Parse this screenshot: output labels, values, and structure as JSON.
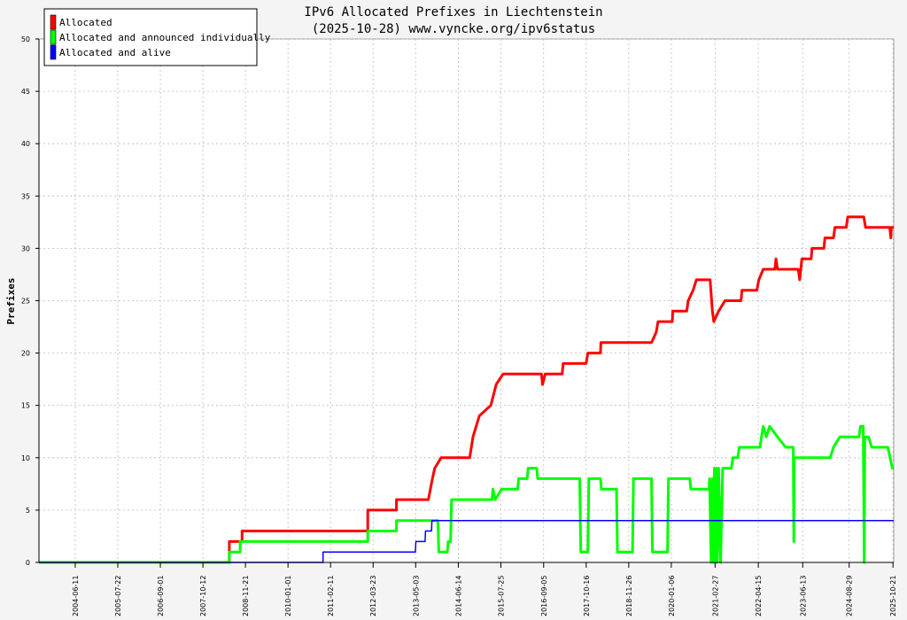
{
  "chart_data": {
    "type": "line",
    "title": "IPv6 Allocated Prefixes in Liechtenstein",
    "subtitle": "(2025-10-28) www.vyncke.org/ipv6status",
    "ylabel": "Prefixes",
    "xlabel": "",
    "ylim": [
      0,
      50
    ],
    "yticks": [
      0,
      5,
      10,
      15,
      20,
      25,
      30,
      35,
      40,
      45,
      50
    ],
    "xlim": [
      "2003-07-01",
      "2025-10-28"
    ],
    "xticks": [
      "2004-06-11",
      "2005-07-22",
      "2006-09-01",
      "2007-10-12",
      "2008-11-21",
      "2010-01-01",
      "2011-02-11",
      "2012-03-23",
      "2013-05-03",
      "2014-06-14",
      "2015-07-25",
      "2016-09-05",
      "2017-10-16",
      "2018-11-26",
      "2020-01-06",
      "2021-02-27",
      "2022-04-15",
      "2023-06-13",
      "2024-08-29",
      "2025-10-21"
    ],
    "grid": true,
    "legend_position": "top-left",
    "series": [
      {
        "name": "Allocated",
        "color": "#ff0000",
        "points": [
          [
            "2003-07-01",
            0
          ],
          [
            "2008-06-20",
            0
          ],
          [
            "2008-06-20",
            2
          ],
          [
            "2008-10-20",
            2
          ],
          [
            "2008-10-20",
            3
          ],
          [
            "2012-02-01",
            3
          ],
          [
            "2012-02-01",
            5
          ],
          [
            "2012-11-01",
            5
          ],
          [
            "2012-11-01",
            6
          ],
          [
            "2013-09-01",
            6
          ],
          [
            "2013-09-20",
            7
          ],
          [
            "2013-10-10",
            8
          ],
          [
            "2013-11-01",
            9
          ],
          [
            "2014-01-01",
            10
          ],
          [
            "2014-10-01",
            10
          ],
          [
            "2014-11-01",
            12
          ],
          [
            "2015-01-01",
            14
          ],
          [
            "2015-04-20",
            15
          ],
          [
            "2015-06-10",
            17
          ],
          [
            "2015-08-15",
            18
          ],
          [
            "2016-08-15",
            18
          ],
          [
            "2016-08-25",
            17
          ],
          [
            "2016-09-20",
            18
          ],
          [
            "2017-03-01",
            18
          ],
          [
            "2017-03-10",
            19
          ],
          [
            "2017-10-15",
            19
          ],
          [
            "2017-11-01",
            20
          ],
          [
            "2018-03-01",
            20
          ],
          [
            "2018-03-05",
            21
          ],
          [
            "2019-07-01",
            21
          ],
          [
            "2019-08-15",
            22
          ],
          [
            "2019-09-01",
            23
          ],
          [
            "2020-01-15",
            23
          ],
          [
            "2020-01-20",
            24
          ],
          [
            "2020-06-01",
            24
          ],
          [
            "2020-06-15",
            25
          ],
          [
            "2020-08-01",
            26
          ],
          [
            "2020-09-01",
            27
          ],
          [
            "2021-01-10",
            27
          ],
          [
            "2021-02-01",
            24
          ],
          [
            "2021-02-15",
            23
          ],
          [
            "2021-04-01",
            24
          ],
          [
            "2021-06-01",
            25
          ],
          [
            "2021-11-01",
            25
          ],
          [
            "2021-11-10",
            26
          ],
          [
            "2022-04-01",
            26
          ],
          [
            "2022-04-20",
            27
          ],
          [
            "2022-06-01",
            28
          ],
          [
            "2022-09-20",
            28
          ],
          [
            "2022-10-01",
            29
          ],
          [
            "2022-10-15",
            28
          ],
          [
            "2023-05-01",
            28
          ],
          [
            "2023-05-15",
            27
          ],
          [
            "2023-06-05",
            29
          ],
          [
            "2023-09-01",
            29
          ],
          [
            "2023-09-10",
            30
          ],
          [
            "2024-01-01",
            30
          ],
          [
            "2024-01-10",
            31
          ],
          [
            "2024-04-01",
            31
          ],
          [
            "2024-04-15",
            32
          ],
          [
            "2024-08-01",
            32
          ],
          [
            "2024-08-15",
            33
          ],
          [
            "2025-01-15",
            33
          ],
          [
            "2025-02-01",
            32
          ],
          [
            "2025-09-20",
            32
          ],
          [
            "2025-10-01",
            31
          ],
          [
            "2025-10-05",
            32
          ],
          [
            "2025-10-28",
            32
          ]
        ]
      },
      {
        "name": "Allocated and announced individually",
        "color": "#00ff00",
        "points": [
          [
            "2003-07-01",
            0
          ],
          [
            "2008-06-20",
            0
          ],
          [
            "2008-06-20",
            1
          ],
          [
            "2008-10-01",
            1
          ],
          [
            "2008-10-01",
            2
          ],
          [
            "2012-02-01",
            2
          ],
          [
            "2012-02-01",
            3
          ],
          [
            "2012-11-01",
            3
          ],
          [
            "2012-11-01",
            4
          ],
          [
            "2013-09-01",
            4
          ],
          [
            "2013-12-01",
            4
          ],
          [
            "2013-12-10",
            1
          ],
          [
            "2014-03-01",
            1
          ],
          [
            "2014-03-10",
            2
          ],
          [
            "2014-04-01",
            2
          ],
          [
            "2014-04-10",
            6
          ],
          [
            "2015-05-01",
            6
          ],
          [
            "2015-05-10",
            7
          ],
          [
            "2015-06-01",
            6
          ],
          [
            "2015-08-01",
            7
          ],
          [
            "2016-01-01",
            7
          ],
          [
            "2016-01-10",
            8
          ],
          [
            "2016-04-01",
            8
          ],
          [
            "2016-04-10",
            9
          ],
          [
            "2016-07-01",
            9
          ],
          [
            "2016-07-10",
            8
          ],
          [
            "2017-08-15",
            8
          ],
          [
            "2017-08-25",
            1
          ],
          [
            "2017-11-01",
            1
          ],
          [
            "2017-11-10",
            8
          ],
          [
            "2018-03-01",
            8
          ],
          [
            "2018-03-10",
            7
          ],
          [
            "2018-08-01",
            7
          ],
          [
            "2018-08-10",
            1
          ],
          [
            "2019-01-01",
            1
          ],
          [
            "2019-01-10",
            8
          ],
          [
            "2019-07-01",
            8
          ],
          [
            "2019-07-10",
            1
          ],
          [
            "2019-12-01",
            1
          ],
          [
            "2019-12-10",
            8
          ],
          [
            "2020-07-01",
            8
          ],
          [
            "2020-07-10",
            7
          ],
          [
            "2021-01-01",
            7
          ],
          [
            "2021-01-05",
            8
          ],
          [
            "2021-01-20",
            0
          ],
          [
            "2021-02-01",
            8
          ],
          [
            "2021-02-10",
            0
          ],
          [
            "2021-02-20",
            9
          ],
          [
            "2021-03-01",
            0
          ],
          [
            "2021-03-10",
            9
          ],
          [
            "2021-03-20",
            0
          ],
          [
            "2021-04-01",
            9
          ],
          [
            "2021-04-20",
            0
          ],
          [
            "2021-05-10",
            9
          ],
          [
            "2021-08-01",
            9
          ],
          [
            "2021-08-15",
            10
          ],
          [
            "2021-10-01",
            10
          ],
          [
            "2021-10-15",
            11
          ],
          [
            "2022-05-01",
            11
          ],
          [
            "2022-05-15",
            12
          ],
          [
            "2022-06-01",
            13
          ],
          [
            "2022-07-01",
            12
          ],
          [
            "2022-08-01",
            13
          ],
          [
            "2022-10-15",
            12
          ],
          [
            "2023-01-01",
            11
          ],
          [
            "2023-03-15",
            11
          ],
          [
            "2023-03-20",
            2
          ],
          [
            "2023-03-25",
            10
          ],
          [
            "2024-03-01",
            10
          ],
          [
            "2024-04-01",
            11
          ],
          [
            "2024-06-01",
            12
          ],
          [
            "2024-12-01",
            12
          ],
          [
            "2024-12-15",
            13
          ],
          [
            "2025-01-10",
            13
          ],
          [
            "2025-01-20",
            0
          ],
          [
            "2025-01-25",
            12
          ],
          [
            "2025-03-01",
            12
          ],
          [
            "2025-04-01",
            11
          ],
          [
            "2025-09-01",
            11
          ],
          [
            "2025-10-15",
            9
          ],
          [
            "2025-10-28",
            9
          ]
        ]
      },
      {
        "name": "Allocated and alive",
        "color": "#0000ff",
        "points": [
          [
            "2003-07-01",
            0
          ],
          [
            "2010-12-01",
            0
          ],
          [
            "2010-12-01",
            1
          ],
          [
            "2013-05-01",
            1
          ],
          [
            "2013-05-05",
            2
          ],
          [
            "2013-08-01",
            2
          ],
          [
            "2013-08-05",
            3
          ],
          [
            "2013-10-01",
            3
          ],
          [
            "2013-10-05",
            4
          ],
          [
            "2025-10-28",
            4
          ]
        ]
      }
    ]
  }
}
